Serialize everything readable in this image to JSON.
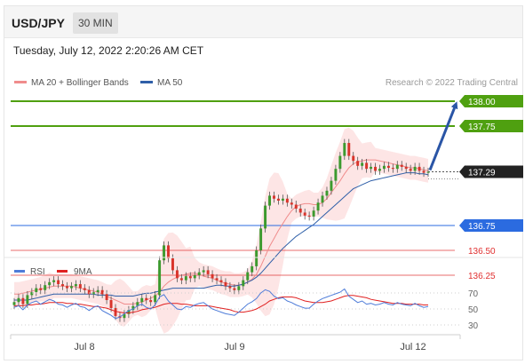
{
  "header": {
    "symbol": "USD/JPY",
    "timeframe": "30 MIN",
    "timestamp": "Tuesday, July 12, 2022 2:20:26 AM CET"
  },
  "chart_data": [
    {
      "type": "candlestick",
      "legend": [
        {
          "name": "MA 20 + Bollinger Bands",
          "color": "#f08c8c"
        },
        {
          "name": "MA 50",
          "color": "#2f5fa8"
        }
      ],
      "credit": "Research © 2022 Trading Central",
      "ylim": [
        135.7,
        138.15
      ],
      "levels": [
        {
          "value": 138.0,
          "label": "138.00",
          "color": "#4fa010",
          "kind": "resistance"
        },
        {
          "value": 137.75,
          "label": "137.75",
          "color": "#4fa010",
          "kind": "resistance"
        },
        {
          "value": 137.29,
          "label": "137.29",
          "color": "#222222",
          "kind": "last"
        },
        {
          "value": 136.75,
          "label": "136.75",
          "color": "#2b6be0",
          "kind": "pivot"
        },
        {
          "value": 136.5,
          "label": "136.50",
          "color": "#e03030",
          "kind": "support"
        },
        {
          "value": 136.25,
          "label": "136.25",
          "color": "#e03030",
          "kind": "support"
        }
      ],
      "x_ticks": [
        "Jul 8",
        "Jul 9",
        "Jul 12"
      ],
      "candle_closes": [
        135.98,
        136.02,
        135.96,
        136.05,
        136.08,
        136.12,
        136.1,
        136.15,
        136.18,
        136.2,
        136.16,
        136.14,
        136.12,
        136.14,
        136.16,
        136.12,
        136.1,
        136.06,
        136.08,
        136.1,
        136.06,
        136.0,
        135.92,
        135.84,
        135.82,
        135.86,
        135.9,
        135.94,
        135.98,
        136.02,
        136.0,
        135.98,
        136.05,
        136.4,
        136.55,
        136.42,
        136.3,
        136.22,
        136.2,
        136.24,
        136.22,
        136.25,
        136.28,
        136.3,
        136.26,
        136.22,
        136.2,
        136.18,
        136.14,
        136.12,
        136.1,
        136.14,
        136.2,
        136.28,
        136.34,
        136.5,
        136.72,
        136.95,
        137.05,
        137.02,
        137.0,
        137.02,
        136.98,
        136.96,
        136.92,
        136.88,
        136.85,
        136.84,
        136.9,
        136.98,
        137.05,
        137.1,
        137.2,
        137.32,
        137.45,
        137.58,
        137.45,
        137.4,
        137.35,
        137.38,
        137.32,
        137.34,
        137.3,
        137.32,
        137.35,
        137.33,
        137.32,
        137.36,
        137.34,
        137.32,
        137.3,
        137.34,
        137.3,
        137.28,
        137.29
      ],
      "ma50": [
        136.0,
        136.0,
        136.0,
        136.0,
        136.01,
        136.02,
        136.03,
        136.04,
        136.05,
        136.06,
        136.06,
        136.06,
        136.06,
        136.06,
        136.06,
        136.06,
        136.06,
        136.06,
        136.06,
        136.05,
        136.05,
        136.05,
        136.05,
        136.04,
        136.04,
        136.04,
        136.04,
        136.04,
        136.05,
        136.06,
        136.07,
        136.07,
        136.08,
        136.09,
        136.1,
        136.11,
        136.12,
        136.12,
        136.12,
        136.12,
        136.12,
        136.12,
        136.12,
        136.12,
        136.13,
        136.14,
        136.15,
        136.15,
        136.14,
        136.14,
        136.14,
        136.15,
        136.16,
        136.18,
        136.2,
        136.23,
        136.27,
        136.32,
        136.37,
        136.42,
        136.47,
        136.52,
        136.56,
        136.6,
        136.64,
        136.67,
        136.7,
        136.73,
        136.76,
        136.8,
        136.84,
        136.88,
        136.92,
        136.96,
        137.0,
        137.04,
        137.08,
        137.12,
        137.14,
        137.16,
        137.18,
        137.2,
        137.21,
        137.22,
        137.23,
        137.24,
        137.25,
        137.26,
        137.27,
        137.28,
        137.28,
        137.28,
        137.27,
        137.27,
        137.26
      ],
      "ma20": [
        136.06,
        136.06,
        136.07,
        136.08,
        136.09,
        136.1,
        136.11,
        136.12,
        136.13,
        136.14,
        136.14,
        136.14,
        136.14,
        136.14,
        136.13,
        136.12,
        136.11,
        136.1,
        136.09,
        136.08,
        136.06,
        136.04,
        136.02,
        136.0,
        135.98,
        135.96,
        135.96,
        135.96,
        135.97,
        135.98,
        136.0,
        136.02,
        136.04,
        136.08,
        136.14,
        136.18,
        136.21,
        136.23,
        136.25,
        136.26,
        136.27,
        136.27,
        136.26,
        136.24,
        136.23,
        136.22,
        136.2,
        136.18,
        136.17,
        136.16,
        136.15,
        136.15,
        136.16,
        136.18,
        136.21,
        136.26,
        136.34,
        136.44,
        136.54,
        136.62,
        136.7,
        136.77,
        136.84,
        136.9,
        136.94,
        136.96,
        136.97,
        136.97,
        136.96,
        136.96,
        136.98,
        137.02,
        137.08,
        137.14,
        137.2,
        137.27,
        137.33,
        137.37,
        137.39,
        137.4,
        137.41,
        137.41,
        137.41,
        137.4,
        137.39,
        137.38,
        137.37,
        137.36,
        137.35,
        137.34,
        137.33,
        137.33,
        137.32,
        137.31,
        137.3
      ],
      "forecast_target": 138.0
    },
    {
      "type": "line",
      "legend": [
        {
          "name": "RSI",
          "color": "#4f7dd9"
        },
        {
          "name": "9MA",
          "color": "#e02020"
        }
      ],
      "ylim": [
        25,
        80
      ],
      "y_ticks": [
        70,
        50,
        30
      ],
      "rsi": [
        52,
        54,
        49,
        55,
        58,
        60,
        56,
        59,
        62,
        60,
        56,
        55,
        52,
        55,
        57,
        53,
        52,
        48,
        52,
        54,
        48,
        45,
        42,
        38,
        40,
        44,
        48,
        50,
        54,
        56,
        52,
        50,
        55,
        65,
        68,
        60,
        55,
        50,
        49,
        53,
        52,
        55,
        57,
        58,
        54,
        50,
        48,
        46,
        44,
        43,
        42,
        46,
        51,
        56,
        59,
        63,
        70,
        74,
        72,
        66,
        63,
        64,
        60,
        58,
        55,
        53,
        51,
        51,
        56,
        60,
        63,
        65,
        67,
        69,
        71,
        75,
        66,
        62,
        58,
        60,
        56,
        57,
        55,
        56,
        58,
        56,
        55,
        58,
        56,
        55,
        54,
        57,
        54,
        52,
        53
      ],
      "ma9": [
        54,
        54,
        54,
        55,
        55,
        56,
        56,
        57,
        58,
        58,
        58,
        58,
        57,
        57,
        56,
        56,
        55,
        54,
        53,
        53,
        52,
        51,
        49,
        47,
        46,
        45,
        45,
        46,
        47,
        49,
        50,
        51,
        52,
        54,
        56,
        57,
        57,
        57,
        56,
        56,
        55,
        54,
        54,
        54,
        54,
        53,
        52,
        51,
        50,
        49,
        47,
        46,
        46,
        47,
        48,
        50,
        53,
        56,
        60,
        62,
        64,
        65,
        65,
        65,
        64,
        62,
        60,
        59,
        58,
        58,
        58,
        59,
        60,
        62,
        64,
        66,
        67,
        67,
        66,
        65,
        64,
        62,
        61,
        60,
        59,
        58,
        57,
        57,
        57,
        56,
        56,
        56,
        56,
        55,
        55
      ],
      "x_ticks": [
        "Jul 8",
        "Jul 9",
        "Jul 12"
      ]
    }
  ]
}
